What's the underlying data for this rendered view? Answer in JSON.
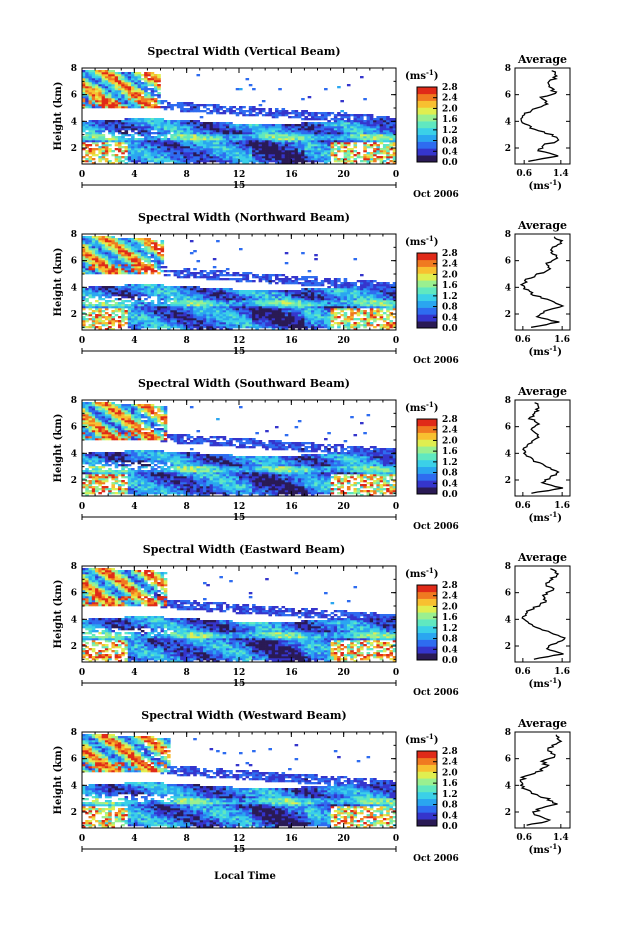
{
  "figure": {
    "xlabel": "Local Time",
    "date_label": "Oct 2006",
    "day_label": "15",
    "colorbar_unit": "(ms",
    "unit_exp": "-1",
    "avg_title": "Average",
    "avg_unit": "(ms",
    "colors": [
      "#2a1a55",
      "#3535cc",
      "#2e6cf0",
      "#2aa6f0",
      "#3bd0e8",
      "#60e8c0",
      "#9af090",
      "#e0ee50",
      "#f8c030",
      "#f07a20",
      "#e02a18"
    ]
  },
  "chart_data": [
    {
      "type": "heatmap",
      "title": "Spectral Width (Vertical Beam)",
      "xlabel": "Local Time",
      "ylabel": "Height (km)",
      "xlim": [
        0,
        24
      ],
      "ylim": [
        0.8,
        8
      ],
      "xticks": [
        "0",
        "4",
        "8",
        "12",
        "16",
        "20",
        "0"
      ],
      "yticks": [
        "2",
        "4",
        "6",
        "8"
      ],
      "colorbar": {
        "unit": "(ms-1)",
        "ticks": [
          "2.8",
          "2.4",
          "2.0",
          "1.6",
          "1.2",
          "0.8",
          "0.4",
          "0.0"
        ],
        "range": [
          0,
          2.8
        ]
      },
      "average_profile": {
        "title": "Average",
        "xlabel": "(ms-1)",
        "xticks": [
          "0.6",
          "1.4"
        ],
        "xlim": [
          0.4,
          1.6
        ],
        "heights": [
          1.0,
          1.4,
          1.8,
          2.2,
          2.6,
          3.0,
          3.4,
          3.8,
          4.2,
          4.6,
          5.0,
          5.4,
          5.8,
          6.2,
          6.6,
          7.0,
          7.4,
          7.8
        ],
        "values": [
          0.7,
          1.3,
          0.9,
          1.0,
          1.4,
          1.2,
          0.8,
          0.6,
          0.5,
          0.6,
          0.9,
          1.1,
          1.0,
          1.3,
          1.1,
          1.2,
          1.3,
          1.2
        ]
      }
    },
    {
      "type": "heatmap",
      "title": "Spectral Width (Northward Beam)",
      "xlabel": "Local Time",
      "ylabel": "Height (km)",
      "xlim": [
        0,
        24
      ],
      "ylim": [
        0.8,
        8
      ],
      "xticks": [
        "0",
        "4",
        "8",
        "12",
        "16",
        "20",
        "0"
      ],
      "yticks": [
        "2",
        "4",
        "6",
        "8"
      ],
      "colorbar": {
        "unit": "(ms-1)",
        "ticks": [
          "2.8",
          "2.4",
          "2.0",
          "1.6",
          "1.2",
          "0.8",
          "0.4",
          "0.0"
        ],
        "range": [
          0,
          2.8
        ]
      },
      "average_profile": {
        "title": "Average",
        "xlabel": "(ms-1)",
        "xticks": [
          "0.6",
          "1.6"
        ],
        "xlim": [
          0.4,
          1.8
        ],
        "heights": [
          1.0,
          1.4,
          1.8,
          2.2,
          2.6,
          3.0,
          3.4,
          3.8,
          4.2,
          4.6,
          5.0,
          5.4,
          5.8,
          6.2,
          6.6,
          7.0,
          7.4,
          7.8
        ],
        "values": [
          0.8,
          1.5,
          1.0,
          1.1,
          1.6,
          1.3,
          0.9,
          0.7,
          0.6,
          0.7,
          1.0,
          1.3,
          1.2,
          1.5,
          1.3,
          1.4,
          1.6,
          1.4
        ]
      }
    },
    {
      "type": "heatmap",
      "title": "Spectral Width (Southward Beam)",
      "xlabel": "Local Time",
      "ylabel": "Height (km)",
      "xlim": [
        0,
        24
      ],
      "ylim": [
        0.8,
        8
      ],
      "xticks": [
        "0",
        "4",
        "8",
        "12",
        "16",
        "20",
        "0"
      ],
      "yticks": [
        "2",
        "4",
        "6",
        "8"
      ],
      "colorbar": {
        "unit": "(ms-1)",
        "ticks": [
          "2.8",
          "2.4",
          "2.0",
          "1.6",
          "1.2",
          "0.8",
          "0.4",
          "0.0"
        ],
        "range": [
          0,
          2.8
        ]
      },
      "average_profile": {
        "title": "Average",
        "xlabel": "(ms-1)",
        "xticks": [
          "0.6",
          "1.6"
        ],
        "xlim": [
          0.4,
          1.8
        ],
        "heights": [
          1.0,
          1.4,
          1.8,
          2.2,
          2.6,
          3.0,
          3.4,
          3.8,
          4.2,
          4.6,
          5.0,
          5.4,
          5.8,
          6.2,
          6.6,
          7.0,
          7.4,
          7.8
        ],
        "values": [
          0.8,
          1.6,
          1.1,
          1.3,
          1.5,
          1.2,
          0.9,
          0.7,
          0.6,
          0.7,
          0.9,
          1.0,
          0.8,
          1.0,
          0.8,
          0.9,
          1.0,
          0.9
        ]
      }
    },
    {
      "type": "heatmap",
      "title": "Spectral Width (Eastward Beam)",
      "xlabel": "Local Time",
      "ylabel": "Height (km)",
      "xlim": [
        0,
        24
      ],
      "ylim": [
        0.8,
        8
      ],
      "xticks": [
        "0",
        "4",
        "8",
        "12",
        "16",
        "20",
        "0"
      ],
      "yticks": [
        "2",
        "4",
        "6",
        "8"
      ],
      "colorbar": {
        "unit": "(ms-1)",
        "ticks": [
          "2.8",
          "2.4",
          "2.0",
          "1.6",
          "1.2",
          "0.8",
          "0.4",
          "0.0"
        ],
        "range": [
          0,
          2.8
        ]
      },
      "average_profile": {
        "title": "Average",
        "xlabel": "(ms-1)",
        "xticks": [
          "0.6",
          "1.6"
        ],
        "xlim": [
          0.4,
          1.8
        ],
        "heights": [
          1.0,
          1.4,
          1.8,
          2.2,
          2.6,
          3.0,
          3.4,
          3.8,
          4.2,
          4.6,
          5.0,
          5.4,
          5.8,
          6.2,
          6.6,
          7.0,
          7.4,
          7.8
        ],
        "values": [
          0.9,
          1.6,
          1.2,
          1.4,
          1.7,
          1.3,
          0.9,
          0.7,
          0.6,
          0.7,
          1.0,
          1.2,
          1.1,
          1.4,
          1.2,
          1.3,
          1.5,
          1.3
        ]
      }
    },
    {
      "type": "heatmap",
      "title": "Spectral Width (Westward Beam)",
      "xlabel": "Local Time",
      "ylabel": "Height (km)",
      "xlim": [
        0,
        24
      ],
      "ylim": [
        0.8,
        8
      ],
      "xticks": [
        "0",
        "4",
        "8",
        "12",
        "16",
        "20",
        "0"
      ],
      "yticks": [
        "2",
        "4",
        "6",
        "8"
      ],
      "colorbar": {
        "unit": "(ms-1)",
        "ticks": [
          "2.8",
          "2.4",
          "2.0",
          "1.6",
          "1.2",
          "0.8",
          "0.4",
          "0.0"
        ],
        "range": [
          0,
          2.8
        ]
      },
      "average_profile": {
        "title": "Average",
        "xlabel": "(ms-1)",
        "xticks": [
          "0.6",
          "1.4"
        ],
        "xlim": [
          0.4,
          1.6
        ],
        "heights": [
          1.0,
          1.4,
          1.8,
          2.2,
          2.6,
          3.0,
          3.4,
          3.8,
          4.2,
          4.6,
          5.0,
          5.4,
          5.8,
          6.2,
          6.6,
          7.0,
          7.4,
          7.8
        ],
        "values": [
          0.7,
          1.2,
          0.8,
          0.9,
          1.3,
          1.1,
          0.8,
          0.6,
          0.5,
          0.6,
          0.9,
          1.1,
          1.0,
          1.3,
          1.1,
          1.2,
          1.4,
          1.3
        ]
      }
    }
  ]
}
